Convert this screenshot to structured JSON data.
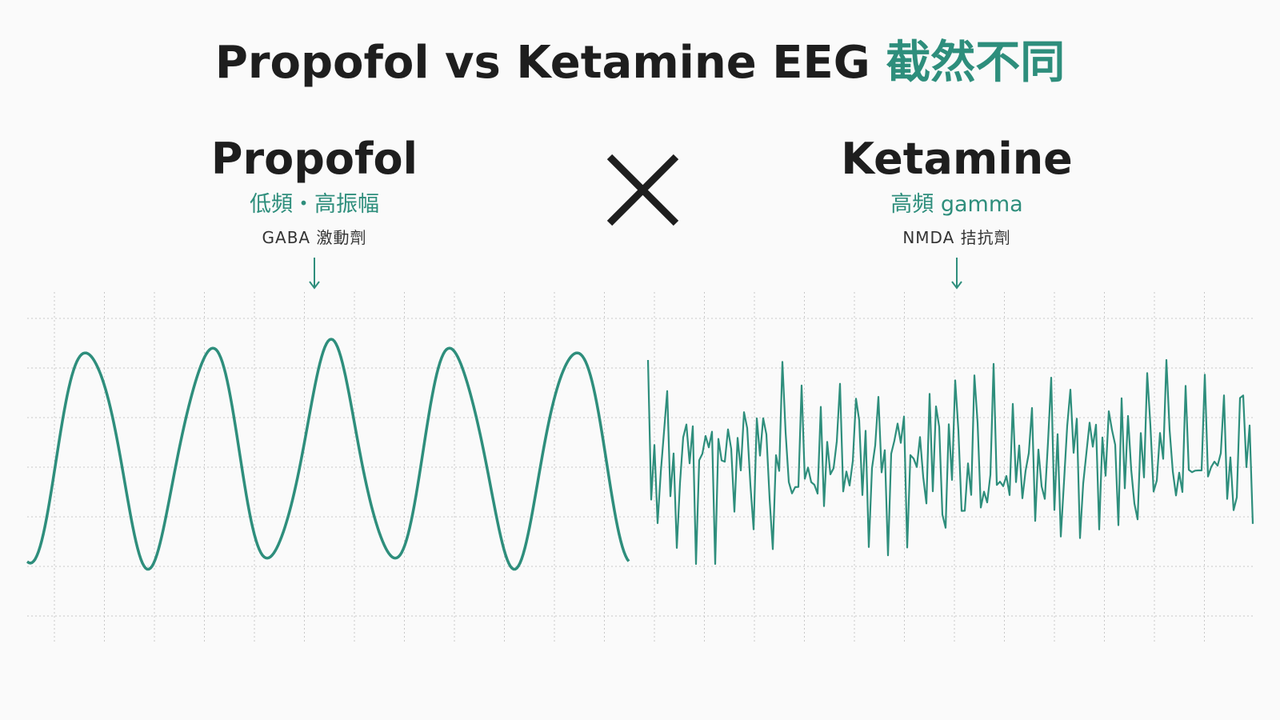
{
  "header": {
    "title": "Propofol vs Ketamine EEG",
    "title_highlight": "截然不同"
  },
  "panels": [
    {
      "name": "Propofol",
      "subtitle": "低頻・高振幅",
      "mechanism": "GABA 激動劑"
    },
    {
      "name": "Ketamine",
      "subtitle": "高頻 gamma",
      "mechanism": "NMDA 拮抗劑"
    }
  ]
}
